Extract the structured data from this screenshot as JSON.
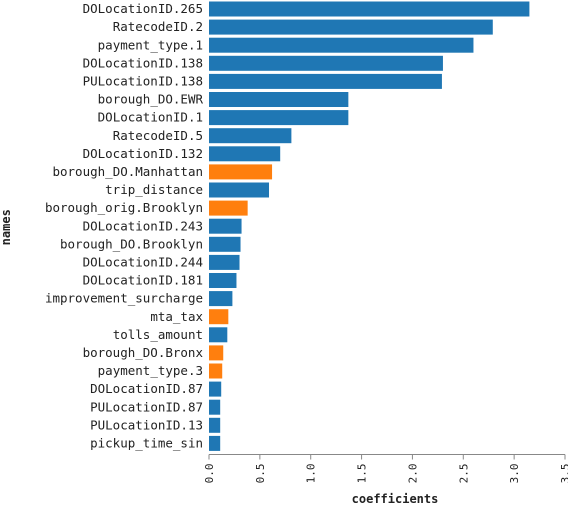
{
  "chart_data": {
    "type": "bar",
    "orientation": "horizontal",
    "xlabel": "coefficients",
    "ylabel": "names",
    "xlim": [
      0,
      3.5
    ],
    "x_ticks": [
      "0.0",
      "0.5",
      "1.0",
      "1.5",
      "2.0",
      "2.5",
      "3.0",
      "3.5"
    ],
    "grid": false,
    "legend": "none",
    "colors": {
      "positive": "#1f77b4",
      "negative": "#ff7f0e"
    },
    "bars": [
      {
        "name": "DOLocationID.265",
        "value": 3.15,
        "color": "#1f77b4"
      },
      {
        "name": "RatecodeID.2",
        "value": 2.79,
        "color": "#1f77b4"
      },
      {
        "name": "payment_type.1",
        "value": 2.6,
        "color": "#1f77b4"
      },
      {
        "name": "DOLocationID.138",
        "value": 2.3,
        "color": "#1f77b4"
      },
      {
        "name": "PULocationID.138",
        "value": 2.29,
        "color": "#1f77b4"
      },
      {
        "name": "borough_DO.EWR",
        "value": 1.37,
        "color": "#1f77b4"
      },
      {
        "name": "DOLocationID.1",
        "value": 1.37,
        "color": "#1f77b4"
      },
      {
        "name": "RatecodeID.5",
        "value": 0.81,
        "color": "#1f77b4"
      },
      {
        "name": "DOLocationID.132",
        "value": 0.7,
        "color": "#1f77b4"
      },
      {
        "name": "borough_DO.Manhattan",
        "value": 0.62,
        "color": "#ff7f0e"
      },
      {
        "name": "trip_distance",
        "value": 0.59,
        "color": "#1f77b4"
      },
      {
        "name": "borough_orig.Brooklyn",
        "value": 0.38,
        "color": "#ff7f0e"
      },
      {
        "name": "DOLocationID.243",
        "value": 0.32,
        "color": "#1f77b4"
      },
      {
        "name": "borough_DO.Brooklyn",
        "value": 0.31,
        "color": "#1f77b4"
      },
      {
        "name": "DOLocationID.244",
        "value": 0.3,
        "color": "#1f77b4"
      },
      {
        "name": "DOLocationID.181",
        "value": 0.27,
        "color": "#1f77b4"
      },
      {
        "name": "improvement_surcharge",
        "value": 0.23,
        "color": "#1f77b4"
      },
      {
        "name": "mta_tax",
        "value": 0.19,
        "color": "#ff7f0e"
      },
      {
        "name": "tolls_amount",
        "value": 0.18,
        "color": "#1f77b4"
      },
      {
        "name": "borough_DO.Bronx",
        "value": 0.14,
        "color": "#ff7f0e"
      },
      {
        "name": "payment_type.3",
        "value": 0.13,
        "color": "#ff7f0e"
      },
      {
        "name": "DOLocationID.87",
        "value": 0.12,
        "color": "#1f77b4"
      },
      {
        "name": "PULocationID.87",
        "value": 0.11,
        "color": "#1f77b4"
      },
      {
        "name": "PULocationID.13",
        "value": 0.11,
        "color": "#1f77b4"
      },
      {
        "name": "pickup_time_sin",
        "value": 0.11,
        "color": "#1f77b4"
      }
    ]
  }
}
